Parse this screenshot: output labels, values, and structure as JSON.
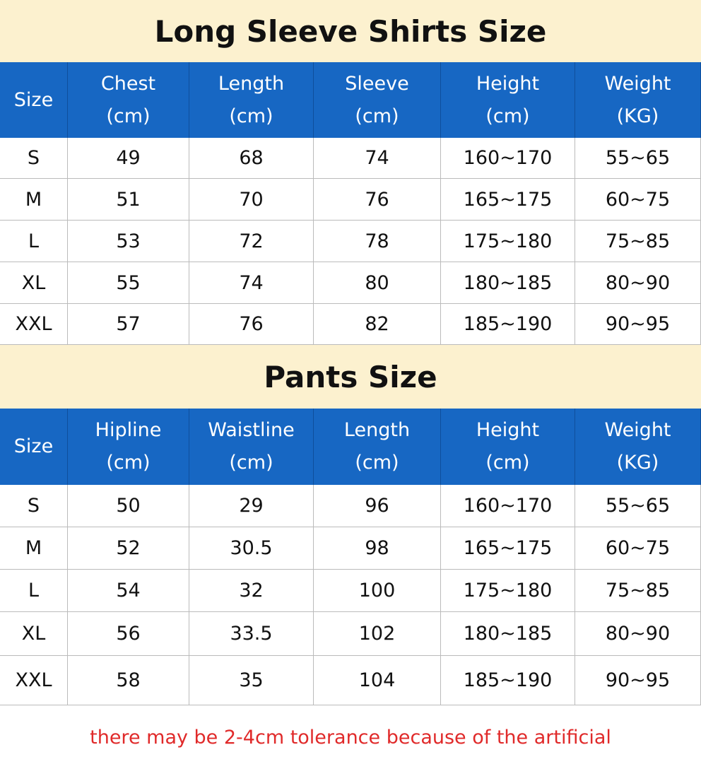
{
  "sections": [
    {
      "title": "Long Sleeve Shirts Size",
      "header": [
        "Size",
        "Chest\n(cm)",
        "Length\n(cm)",
        "Sleeve\n(cm)",
        "Height\n(cm)",
        "Weight\n(KG)"
      ],
      "rows": [
        [
          "S",
          "49",
          "68",
          "74",
          "160~170",
          "55~65"
        ],
        [
          "M",
          "51",
          "70",
          "76",
          "165~175",
          "60~75"
        ],
        [
          "L",
          "53",
          "72",
          "78",
          "175~180",
          "75~85"
        ],
        [
          "XL",
          "55",
          "74",
          "80",
          "180~185",
          "80~90"
        ],
        [
          "XXL",
          "57",
          "76",
          "82",
          "185~190",
          "90~95"
        ]
      ]
    },
    {
      "title": "Pants Size",
      "header": [
        "Size",
        "Hipline\n(cm)",
        "Waistline\n(cm)",
        "Length\n(cm)",
        "Height\n(cm)",
        "Weight\n(KG)"
      ],
      "rows": [
        [
          "S",
          "50",
          "29",
          "96",
          "160~170",
          "55~65"
        ],
        [
          "M",
          "52",
          "30.5",
          "98",
          "165~175",
          "60~75"
        ],
        [
          "L",
          "54",
          "32",
          "100",
          "175~180",
          "75~85"
        ],
        [
          "XL",
          "56",
          "33.5",
          "102",
          "180~185",
          "80~90"
        ],
        [
          "XXL",
          "58",
          "35",
          "104",
          "185~190",
          "90~95"
        ]
      ]
    }
  ],
  "footer": "there may be 2-4cm tolerance because of the artificial"
}
